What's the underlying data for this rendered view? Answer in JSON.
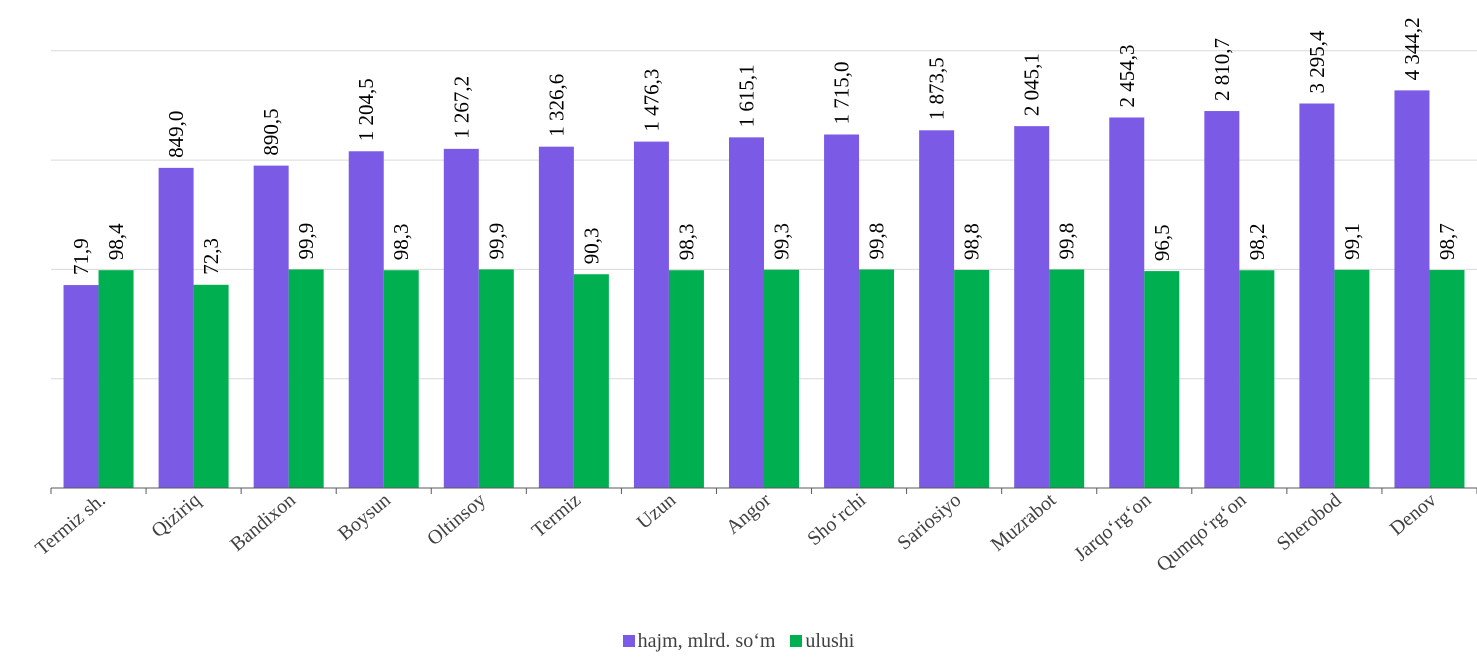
{
  "chart_data": {
    "type": "bar",
    "categories": [
      "Termiz sh.",
      "Qiziriq",
      "Bandixon",
      "Boysun",
      "Oltinsoy",
      "Termiz",
      "Uzun",
      "Angor",
      "Sho‘rchi",
      "Sariosiyo",
      "Muzrabot",
      "Jarqo‘rg‘on",
      "Qumqo‘rg‘on",
      "Sherobod",
      "Denov"
    ],
    "series": [
      {
        "name": "hajm, mlrd. so‘m",
        "color": "#7b5be6",
        "values": [
          71.9,
          849.0,
          890.5,
          1204.5,
          1267.2,
          1326.6,
          1476.3,
          1615.1,
          1715.0,
          1873.5,
          2045.1,
          2454.3,
          2810.7,
          3295.4,
          4344.2
        ],
        "labels": [
          "71,9",
          "849,0",
          "890,5",
          "1 204,5",
          "1 267,2",
          "1 326,6",
          "1 476,3",
          "1 615,1",
          "1 715,0",
          "1 873,5",
          "2 045,1",
          "2 454,3",
          "2 810,7",
          "3 295,4",
          "4 344,2"
        ],
        "axis": "log"
      },
      {
        "name": "ulushi",
        "color": "#00b050",
        "values": [
          98.4,
          72.3,
          99.9,
          98.3,
          99.9,
          90.3,
          98.3,
          99.3,
          99.8,
          98.8,
          99.8,
          96.5,
          98.2,
          99.1,
          98.7
        ],
        "labels": [
          "98,4",
          "72,3",
          "99,9",
          "98,3",
          "99,9",
          "90,3",
          "98,3",
          "99,3",
          "99,8",
          "98,8",
          "99,8",
          "96,5",
          "98,2",
          "99,1",
          "98,7"
        ],
        "axis": "log"
      }
    ],
    "y_scale": "log",
    "ylim": [
      1,
      10000
    ],
    "grid": true,
    "legend_position": "bottom"
  }
}
